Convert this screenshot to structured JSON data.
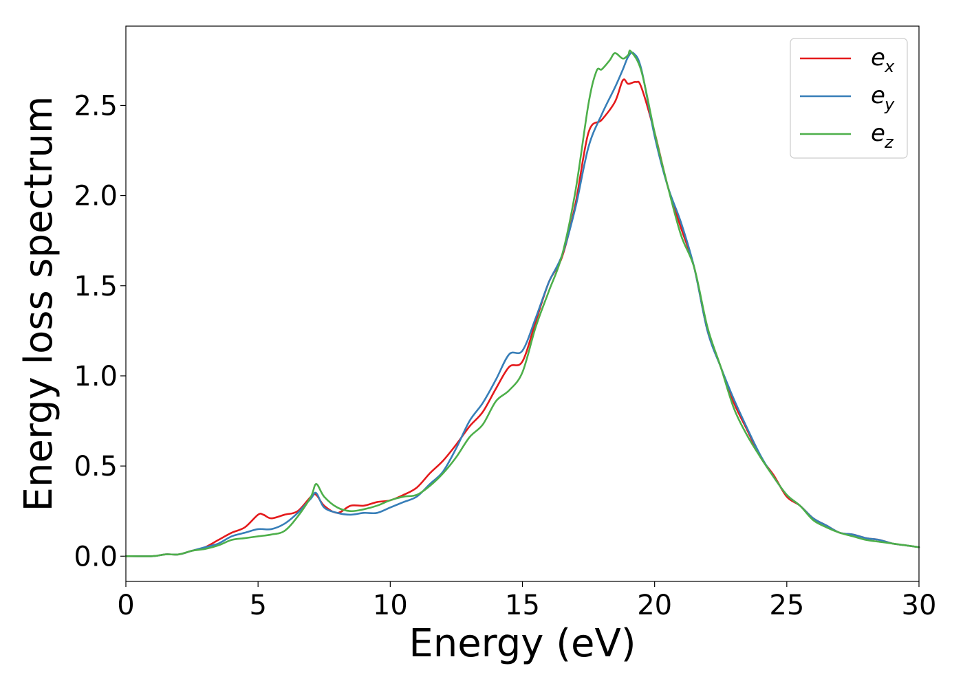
{
  "chart_data": {
    "type": "line",
    "title": "",
    "xlabel": "Energy (eV)",
    "ylabel": "Energy loss spectrum",
    "xlim": [
      0,
      30
    ],
    "ylim": [
      -0.14,
      2.94
    ],
    "xticks": [
      0,
      5,
      10,
      15,
      20,
      25,
      30
    ],
    "xtick_labels": [
      "0",
      "5",
      "10",
      "15",
      "20",
      "25",
      "30"
    ],
    "yticks": [
      0.0,
      0.5,
      1.0,
      1.5,
      2.0,
      2.5
    ],
    "ytick_labels": [
      "0.0",
      "0.5",
      "1.0",
      "1.5",
      "2.0",
      "2.5"
    ],
    "grid": false,
    "legend_position": "top-right",
    "series": [
      {
        "name": "e_x",
        "legend_base": "e",
        "legend_sub": "x",
        "color": "#e41a1c",
        "x": [
          0,
          1,
          1.5,
          2,
          2.5,
          3,
          3.5,
          4,
          4.5,
          5,
          5.2,
          5.5,
          6,
          6.5,
          7,
          7.2,
          7.5,
          8,
          8.5,
          9,
          9.5,
          10,
          10.5,
          11,
          11.5,
          12,
          12.5,
          13,
          13.5,
          14,
          14.5,
          15,
          15.5,
          16,
          16.5,
          17,
          17.5,
          18,
          18.5,
          18.8,
          19,
          19.3,
          19.5,
          20,
          20.5,
          21,
          21.5,
          22,
          22.5,
          23,
          23.5,
          24,
          24.5,
          25,
          25.5,
          26,
          26.5,
          27,
          27.5,
          28,
          28.5,
          29,
          29.5,
          30
        ],
        "y": [
          0.0,
          0.0,
          0.01,
          0.01,
          0.03,
          0.05,
          0.09,
          0.13,
          0.16,
          0.23,
          0.23,
          0.21,
          0.23,
          0.25,
          0.33,
          0.34,
          0.28,
          0.24,
          0.28,
          0.28,
          0.3,
          0.31,
          0.34,
          0.38,
          0.46,
          0.53,
          0.62,
          0.72,
          0.8,
          0.93,
          1.05,
          1.08,
          1.3,
          1.52,
          1.66,
          1.95,
          2.35,
          2.42,
          2.52,
          2.64,
          2.62,
          2.63,
          2.6,
          2.35,
          2.05,
          1.82,
          1.6,
          1.25,
          1.05,
          0.85,
          0.7,
          0.55,
          0.45,
          0.33,
          0.28,
          0.21,
          0.17,
          0.13,
          0.12,
          0.1,
          0.09,
          0.07,
          0.06,
          0.05
        ]
      },
      {
        "name": "e_y",
        "legend_base": "e",
        "legend_sub": "y",
        "color": "#377eb8",
        "x": [
          0,
          1,
          1.5,
          2,
          2.5,
          3,
          3.5,
          4,
          4.5,
          5,
          5.5,
          6,
          6.5,
          7,
          7.2,
          7.5,
          8,
          8.5,
          9,
          9.5,
          10,
          10.5,
          11,
          11.5,
          12,
          12.5,
          13,
          13.5,
          14,
          14.5,
          15,
          15.5,
          16,
          16.5,
          17,
          17.5,
          18,
          18.5,
          18.8,
          19,
          19.2,
          19.5,
          20,
          20.5,
          21,
          21.5,
          22,
          22.5,
          23,
          23.5,
          24,
          24.5,
          25,
          25.5,
          26,
          26.5,
          27,
          27.5,
          28,
          28.5,
          29,
          29.5,
          30
        ],
        "y": [
          0.0,
          0.0,
          0.01,
          0.01,
          0.03,
          0.05,
          0.07,
          0.11,
          0.13,
          0.15,
          0.15,
          0.18,
          0.24,
          0.32,
          0.35,
          0.27,
          0.24,
          0.23,
          0.24,
          0.24,
          0.27,
          0.3,
          0.33,
          0.4,
          0.47,
          0.6,
          0.75,
          0.85,
          0.98,
          1.12,
          1.14,
          1.32,
          1.52,
          1.67,
          1.93,
          2.27,
          2.45,
          2.6,
          2.7,
          2.77,
          2.79,
          2.7,
          2.33,
          2.05,
          1.85,
          1.6,
          1.25,
          1.05,
          0.87,
          0.71,
          0.56,
          0.44,
          0.34,
          0.28,
          0.21,
          0.17,
          0.13,
          0.12,
          0.1,
          0.09,
          0.07,
          0.06,
          0.05
        ]
      },
      {
        "name": "e_z",
        "legend_base": "e",
        "legend_sub": "z",
        "color": "#4daf4a",
        "x": [
          0,
          1,
          1.5,
          2,
          2.5,
          3,
          3.5,
          4,
          4.5,
          5,
          5.5,
          6,
          6.5,
          7,
          7.2,
          7.5,
          8,
          8.5,
          9,
          9.5,
          10,
          10.5,
          11,
          11.5,
          12,
          12.5,
          13,
          13.5,
          14,
          14.5,
          15,
          15.5,
          16,
          16.5,
          17,
          17.5,
          17.8,
          18,
          18.3,
          18.5,
          18.8,
          19,
          19.1,
          19.5,
          20,
          20.5,
          21,
          21.5,
          22,
          22.5,
          23,
          23.5,
          24,
          24.5,
          25,
          25.5,
          26,
          26.5,
          27,
          27.5,
          28,
          28.5,
          29,
          29.5,
          30
        ],
        "y": [
          0.0,
          0.0,
          0.01,
          0.01,
          0.03,
          0.04,
          0.06,
          0.09,
          0.1,
          0.11,
          0.12,
          0.14,
          0.22,
          0.33,
          0.4,
          0.33,
          0.27,
          0.25,
          0.26,
          0.28,
          0.31,
          0.33,
          0.34,
          0.39,
          0.46,
          0.55,
          0.66,
          0.73,
          0.86,
          0.92,
          1.02,
          1.27,
          1.47,
          1.67,
          2.02,
          2.51,
          2.69,
          2.7,
          2.75,
          2.79,
          2.76,
          2.78,
          2.8,
          2.69,
          2.35,
          2.05,
          1.78,
          1.6,
          1.27,
          1.05,
          0.82,
          0.67,
          0.55,
          0.44,
          0.34,
          0.28,
          0.2,
          0.16,
          0.13,
          0.11,
          0.09,
          0.08,
          0.07,
          0.06,
          0.05
        ]
      }
    ]
  }
}
